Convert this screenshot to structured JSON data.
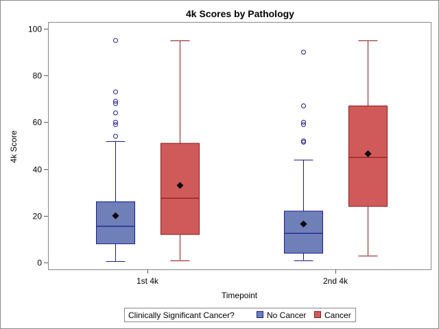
{
  "chart_data": {
    "type": "box",
    "title": "4k Scores by Pathology",
    "xlabel": "Timepoint",
    "ylabel": "4k Score",
    "ylim": [
      0,
      100
    ],
    "yticks": [
      0,
      20,
      40,
      60,
      80,
      100
    ],
    "categories": [
      "1st 4k",
      "2nd 4k"
    ],
    "legend": {
      "title": "Clinically Significant Cancer?",
      "placement": "bottom"
    },
    "series": [
      {
        "name": "No Cancer",
        "fill": "#6f7fb8",
        "stroke": "#1a1a8c",
        "boxes": [
          {
            "category": "1st 4k",
            "min": 0.5,
            "q1": 8,
            "median": 15.5,
            "q3": 26,
            "max": 52,
            "mean": 20,
            "outliers": [
              54,
              59,
              60,
              64,
              68,
              69,
              73,
              95
            ]
          },
          {
            "category": "2nd 4k",
            "min": 1,
            "q1": 4,
            "median": 12.5,
            "q3": 22,
            "max": 44,
            "mean": 16.5,
            "outliers": [
              51.5,
              52,
              59,
              60,
              67,
              90
            ]
          }
        ]
      },
      {
        "name": "Cancer",
        "fill": "#d05a5a",
        "stroke": "#8b1a1a",
        "boxes": [
          {
            "category": "1st 4k",
            "min": 1,
            "q1": 12,
            "median": 27.5,
            "q3": 51,
            "max": 95,
            "mean": 33,
            "outliers": []
          },
          {
            "category": "2nd 4k",
            "min": 3,
            "q1": 24,
            "median": 45,
            "q3": 67,
            "max": 95,
            "mean": 46.5,
            "outliers": []
          }
        ]
      }
    ],
    "grid": false
  }
}
